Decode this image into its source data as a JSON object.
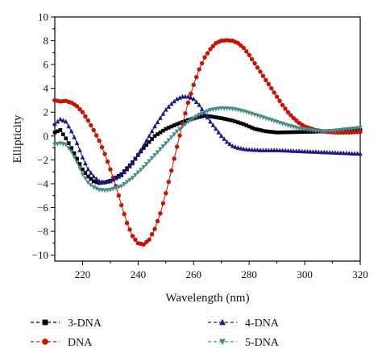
{
  "chart_data": {
    "type": "line",
    "title": "",
    "xlabel": "Wavelength (nm)",
    "ylabel": "Ellipticity",
    "xlim": [
      210,
      320
    ],
    "ylim": [
      -10.5,
      10
    ],
    "xticks": [
      220,
      240,
      260,
      280,
      300,
      320
    ],
    "yticks": [
      -10,
      -8,
      -6,
      -4,
      -2,
      0,
      2,
      4,
      6,
      8,
      10
    ],
    "grid": false,
    "legend_position": "bottom",
    "series": [
      {
        "name": "3-DNA",
        "color": "#000000",
        "marker": "square",
        "x": [
          210,
          212,
          214,
          216,
          218,
          220,
          222,
          224,
          226,
          228,
          230,
          234,
          238,
          242,
          246,
          250,
          254,
          258,
          262,
          264,
          266,
          270,
          274,
          278,
          282,
          286,
          290,
          300,
          310,
          320
        ],
        "y": [
          0.3,
          0.5,
          -0.2,
          -1.0,
          -1.9,
          -2.8,
          -3.4,
          -3.8,
          -3.95,
          -3.9,
          -3.75,
          -3.2,
          -2.2,
          -1.0,
          0.0,
          0.6,
          1.0,
          1.35,
          1.6,
          1.7,
          1.65,
          1.5,
          1.3,
          1.0,
          0.6,
          0.4,
          0.3,
          0.35,
          0.4,
          0.5
        ]
      },
      {
        "name": "DNA",
        "color": "#cc1100",
        "marker": "circle",
        "x": [
          210,
          212,
          214,
          216,
          218,
          220,
          222,
          224,
          226,
          228,
          230,
          232,
          234,
          236,
          238,
          240,
          242,
          244,
          246,
          248,
          250,
          252,
          254,
          256,
          258,
          260,
          262,
          264,
          266,
          268,
          270,
          272,
          274,
          276,
          278,
          280,
          282,
          284,
          286,
          288,
          290,
          292,
          294,
          296,
          298,
          300,
          304,
          308,
          312,
          316,
          320
        ],
        "y": [
          3.0,
          2.9,
          2.95,
          2.8,
          2.5,
          2.0,
          1.3,
          0.5,
          -0.4,
          -1.5,
          -2.8,
          -4.2,
          -5.8,
          -7.3,
          -8.4,
          -9.0,
          -9.1,
          -8.7,
          -7.8,
          -6.5,
          -4.8,
          -2.9,
          -0.9,
          1.0,
          2.8,
          4.3,
          5.6,
          6.6,
          7.3,
          7.8,
          8.0,
          8.05,
          8.0,
          7.8,
          7.4,
          6.8,
          6.1,
          5.4,
          4.7,
          4.0,
          3.3,
          2.6,
          2.0,
          1.5,
          1.1,
          0.8,
          0.5,
          0.35,
          0.3,
          0.3,
          0.35
        ]
      },
      {
        "name": "4-DNA",
        "color": "#1a1a8c",
        "marker": "triangle-up",
        "x": [
          210,
          212,
          214,
          216,
          218,
          220,
          222,
          224,
          226,
          228,
          230,
          234,
          238,
          242,
          246,
          250,
          252,
          254,
          256,
          258,
          260,
          262,
          264,
          266,
          268,
          270,
          272,
          274,
          276,
          278,
          280,
          284,
          290,
          300,
          310,
          320
        ],
        "y": [
          1.0,
          1.4,
          1.2,
          0.4,
          -0.6,
          -1.8,
          -2.8,
          -3.4,
          -3.8,
          -3.9,
          -3.8,
          -3.3,
          -2.3,
          -0.8,
          0.8,
          2.2,
          2.7,
          3.1,
          3.3,
          3.3,
          3.1,
          2.6,
          1.9,
          1.2,
          0.6,
          0.0,
          -0.5,
          -0.85,
          -1.0,
          -1.1,
          -1.15,
          -1.2,
          -1.2,
          -1.3,
          -1.4,
          -1.5
        ]
      },
      {
        "name": "5-DNA",
        "color": "#4a8c8c",
        "marker": "triangle-down",
        "x": [
          210,
          212,
          214,
          216,
          218,
          220,
          222,
          224,
          226,
          228,
          230,
          234,
          238,
          242,
          246,
          250,
          254,
          258,
          262,
          266,
          270,
          274,
          278,
          282,
          286,
          290,
          294,
          298,
          302,
          306,
          310,
          314,
          320
        ],
        "y": [
          -0.7,
          -0.6,
          -0.7,
          -1.3,
          -2.2,
          -3.2,
          -3.9,
          -4.3,
          -4.5,
          -4.55,
          -4.5,
          -4.2,
          -3.5,
          -2.6,
          -1.6,
          -0.6,
          0.4,
          1.2,
          1.8,
          2.2,
          2.35,
          2.3,
          2.1,
          1.8,
          1.5,
          1.2,
          0.9,
          0.65,
          0.5,
          0.4,
          0.45,
          0.55,
          0.7
        ]
      }
    ]
  }
}
